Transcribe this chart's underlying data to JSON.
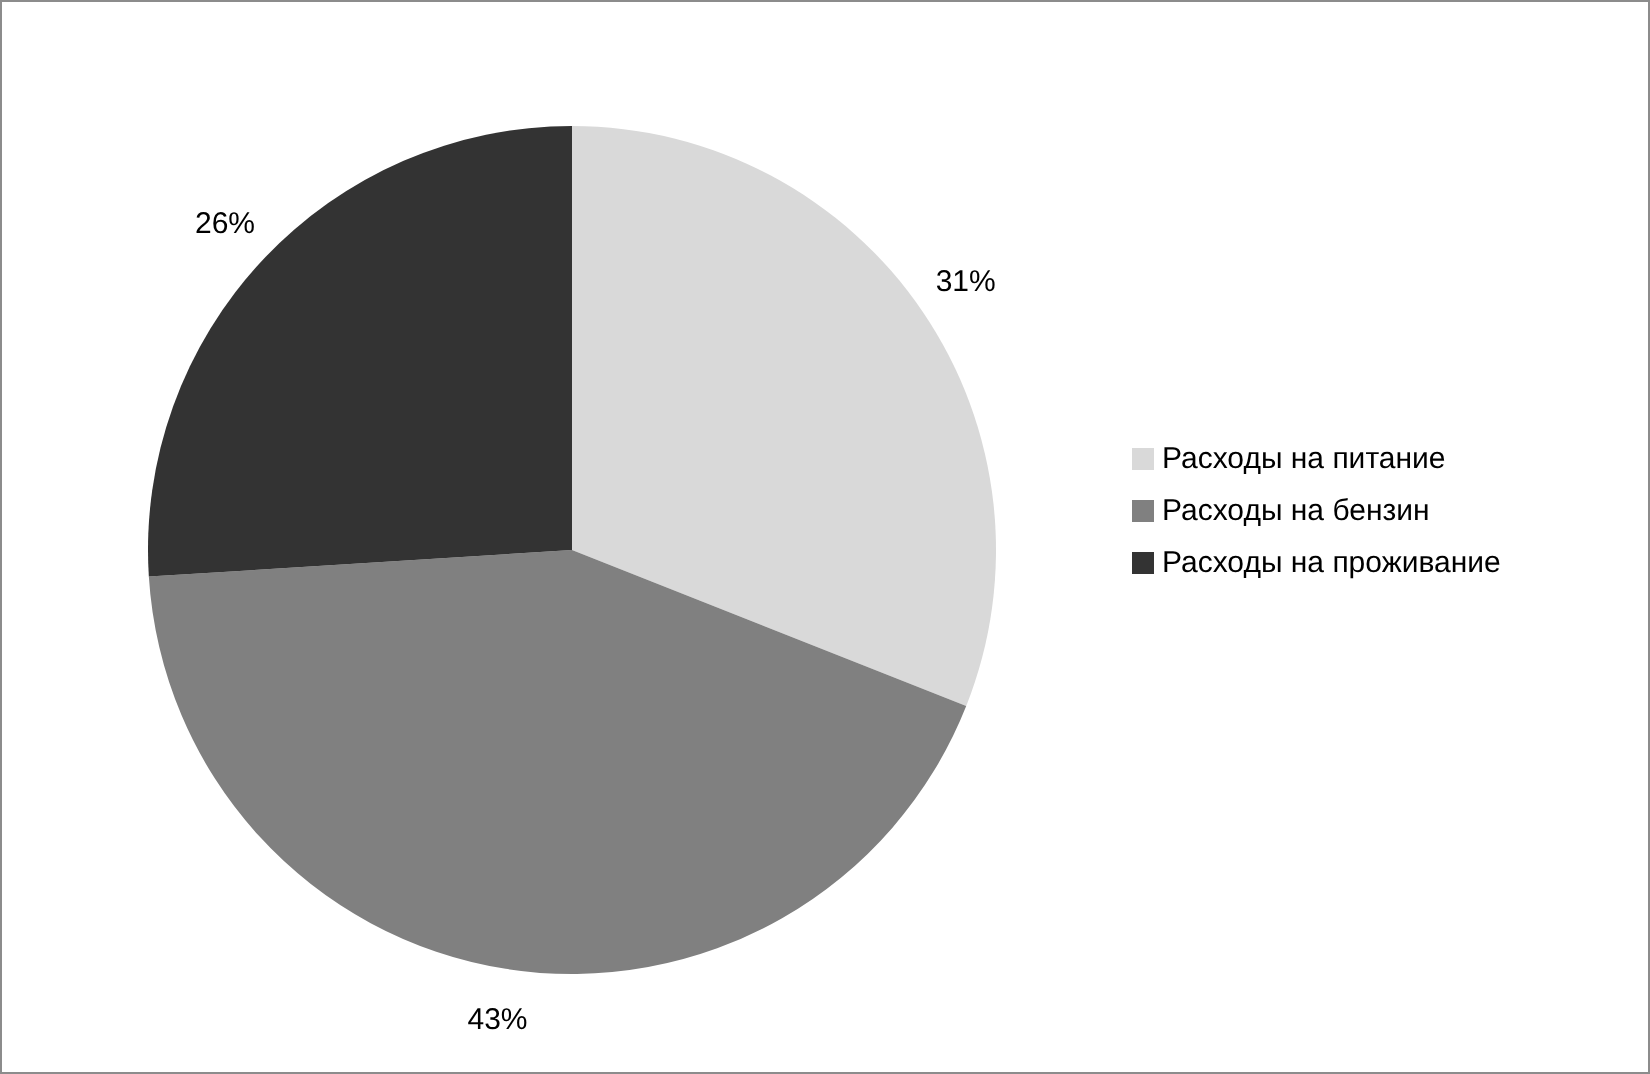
{
  "chart_data": {
    "type": "pie",
    "categories": [
      "Расходы на питание",
      "Расходы на бензин",
      "Расходы на проживание"
    ],
    "values": [
      31,
      43,
      26
    ],
    "colors": [
      "#d9d9d9",
      "#808080",
      "#333333"
    ],
    "value_labels": [
      "31%",
      "43%",
      "26%"
    ],
    "legend": "right"
  }
}
